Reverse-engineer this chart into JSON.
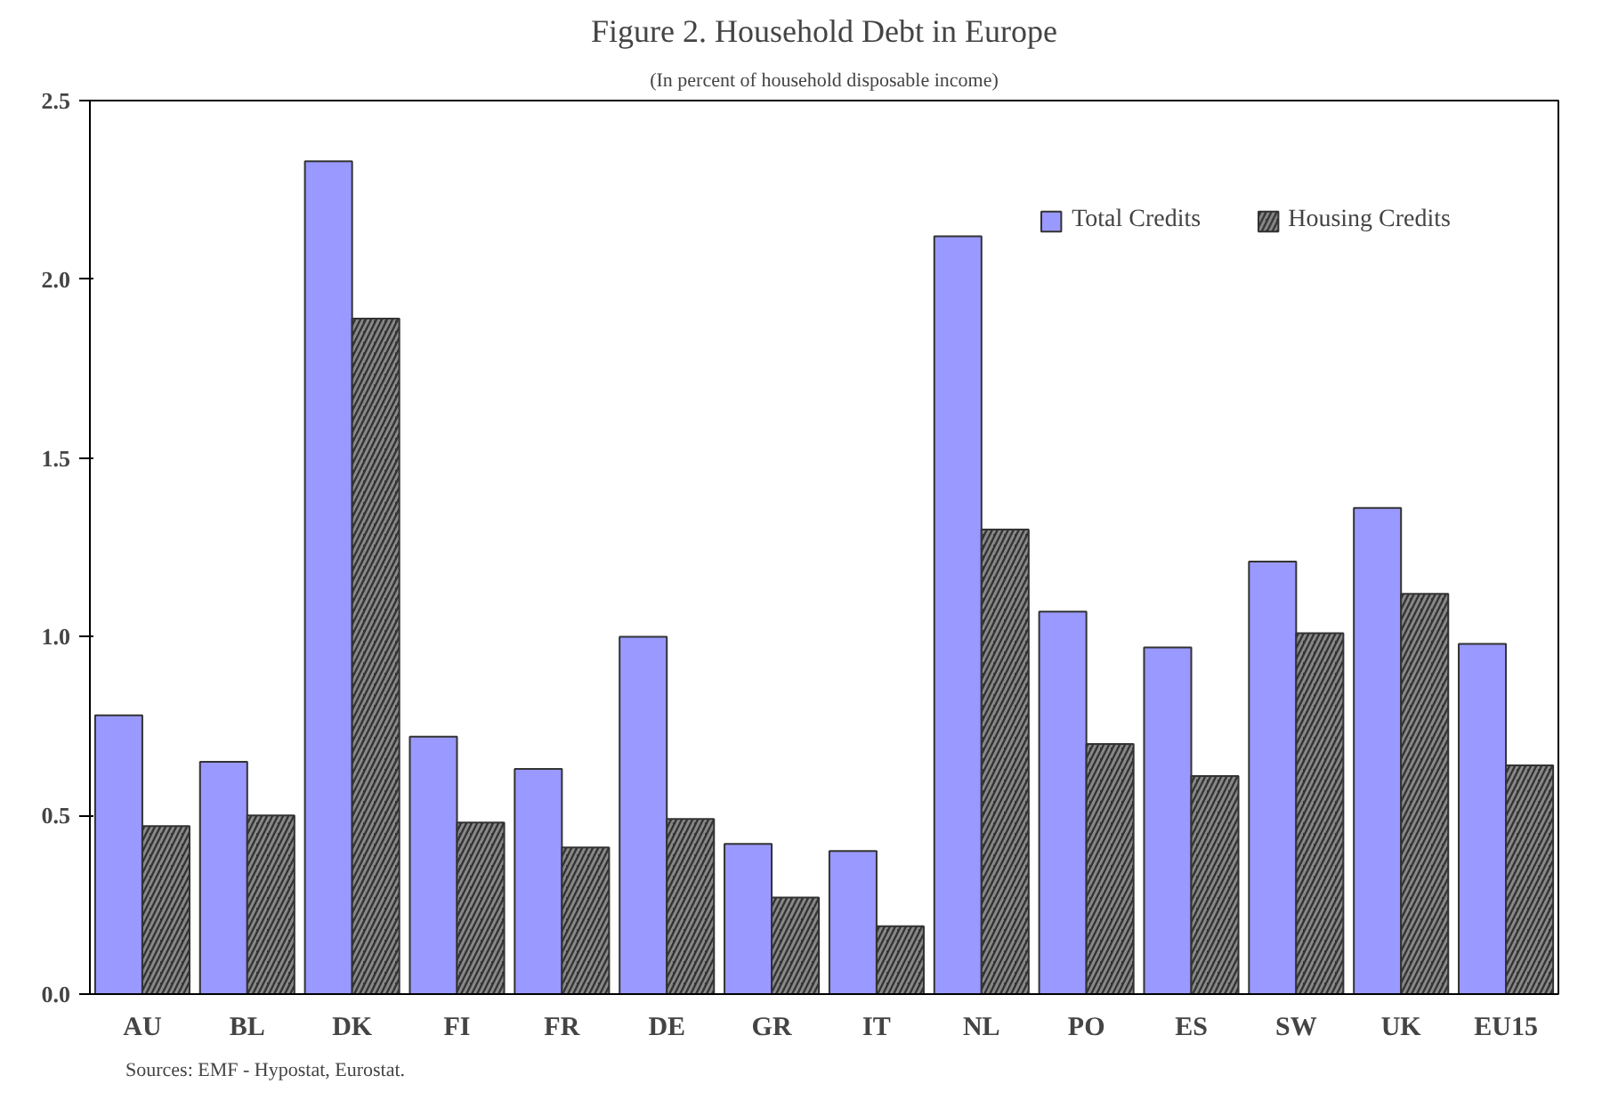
{
  "chart_data": {
    "type": "bar",
    "title": "Figure 2. Household Debt in Europe",
    "subtitle": "(In percent of household disposable income)",
    "categories": [
      "AU",
      "BL",
      "DK",
      "FI",
      "FR",
      "DE",
      "GR",
      "IT",
      "NL",
      "PO",
      "ES",
      "SW",
      "UK",
      "EU15"
    ],
    "series": [
      {
        "name": "Total Credits",
        "color": "#9999ff",
        "values": [
          0.78,
          0.65,
          2.33,
          0.72,
          0.63,
          1.0,
          0.42,
          0.4,
          2.12,
          1.07,
          0.97,
          1.21,
          1.36,
          0.98
        ]
      },
      {
        "name": "Housing Credits",
        "color": "#333333",
        "values": [
          0.47,
          0.5,
          1.89,
          0.48,
          0.41,
          0.49,
          0.27,
          0.19,
          1.3,
          0.7,
          0.61,
          1.01,
          1.12,
          0.64
        ]
      }
    ],
    "ylim": [
      0,
      2.5
    ],
    "yticks": [
      {
        "value": 0,
        "label": "0.0"
      },
      {
        "value": 0.5,
        "label": "0.5"
      },
      {
        "value": 1,
        "label": "1.0"
      },
      {
        "value": 1.5,
        "label": "1.5"
      },
      {
        "value": 2,
        "label": "2.0"
      },
      {
        "value": 2.5,
        "label": "2.5"
      }
    ],
    "grid": false,
    "legend": "top right",
    "annotations": [
      "Sources: EMF - Hypostat, Eurostat."
    ]
  }
}
